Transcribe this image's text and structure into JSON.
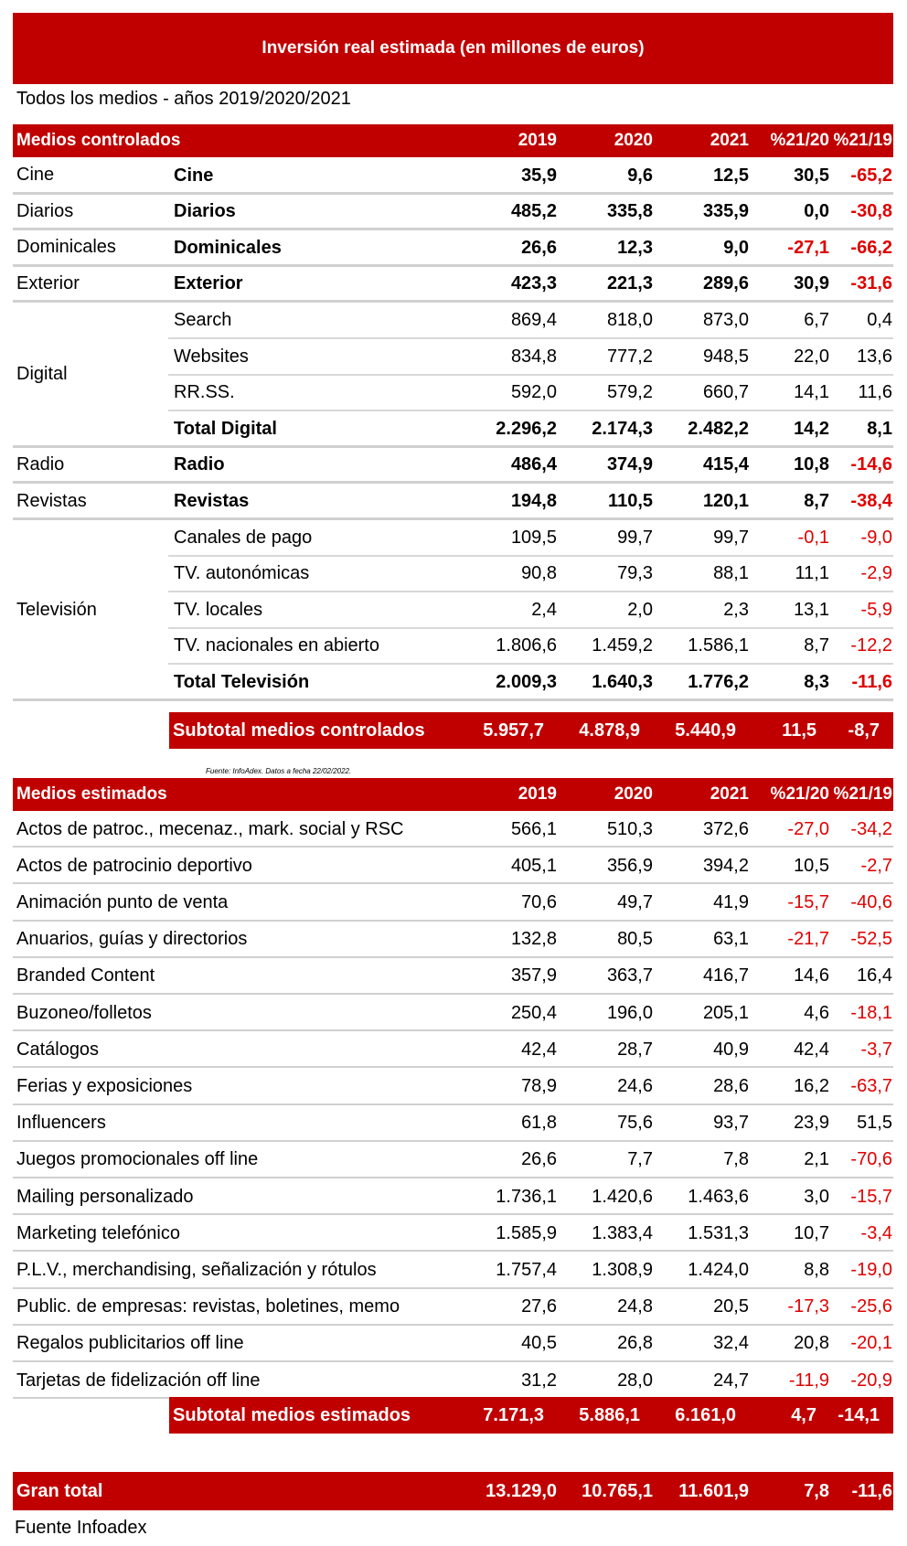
{
  "title": "Inversión real estimada (en millones de euros)",
  "subtitle": "Todos los medios - años 2019/2020/2021",
  "controlled": {
    "header": {
      "label": "Medios controlados",
      "y1": "2019",
      "y2": "2020",
      "y3": "2021",
      "p1": "%21/20",
      "p2": "%21/19"
    },
    "rows": [
      {
        "cat": "Cine",
        "sub": "Cine",
        "v": [
          "35,9",
          "9,6",
          "12,5",
          "30,5",
          "-65,2"
        ],
        "bold": true
      },
      {
        "cat": "Diarios",
        "sub": "Diarios",
        "v": [
          "485,2",
          "335,8",
          "335,9",
          "0,0",
          "-30,8"
        ],
        "bold": true
      },
      {
        "cat": "Dominicales",
        "sub": "Dominicales",
        "v": [
          "26,6",
          "12,3",
          "9,0",
          "-27,1",
          "-66,2"
        ],
        "bold": true
      },
      {
        "cat": "Exterior",
        "sub": "Exterior",
        "v": [
          "423,3",
          "221,3",
          "289,6",
          "30,9",
          "-31,6"
        ],
        "bold": true
      },
      {
        "cat": "",
        "sub": "Search",
        "v": [
          "869,4",
          "818,0",
          "873,0",
          "6,7",
          "0,4"
        ],
        "bold": false
      },
      {
        "cat": "Digital",
        "sub": "Websites",
        "v": [
          "834,8",
          "777,2",
          "948,5",
          "22,0",
          "13,6"
        ],
        "bold": false
      },
      {
        "cat": "",
        "sub": "RR.SS.",
        "v": [
          "592,0",
          "579,2",
          "660,7",
          "14,1",
          "11,6"
        ],
        "bold": false
      },
      {
        "cat": "",
        "sub": "Total Digital",
        "v": [
          "2.296,2",
          "2.174,3",
          "2.482,2",
          "14,2",
          "8,1"
        ],
        "bold": true
      },
      {
        "cat": "Radio",
        "sub": "Radio",
        "v": [
          "486,4",
          "374,9",
          "415,4",
          "10,8",
          "-14,6"
        ],
        "bold": true
      },
      {
        "cat": "Revistas",
        "sub": "Revistas",
        "v": [
          "194,8",
          "110,5",
          "120,1",
          "8,7",
          "-38,4"
        ],
        "bold": true
      },
      {
        "cat": "",
        "sub": "Canales de pago",
        "v": [
          "109,5",
          "99,7",
          "99,7",
          "-0,1",
          "-9,0"
        ],
        "bold": false
      },
      {
        "cat": "",
        "sub": "TV. autonómicas",
        "v": [
          "90,8",
          "79,3",
          "88,1",
          "11,1",
          "-2,9"
        ],
        "bold": false
      },
      {
        "cat": "Televisión",
        "sub": "TV. locales",
        "v": [
          "2,4",
          "2,0",
          "2,3",
          "13,1",
          "-5,9"
        ],
        "bold": false
      },
      {
        "cat": "",
        "sub": "TV. nacionales en abierto",
        "v": [
          "1.806,6",
          "1.459,2",
          "1.586,1",
          "8,7",
          "-12,2"
        ],
        "bold": false
      },
      {
        "cat": "",
        "sub": "Total Televisión",
        "v": [
          "2.009,3",
          "1.640,3",
          "1.776,2",
          "8,3",
          "-11,6"
        ],
        "bold": true
      }
    ],
    "subtotal": {
      "label": "Subtotal medios controlados",
      "v": [
        "5.957,7",
        "4.878,9",
        "5.440,9",
        "11,5",
        "-8,7"
      ]
    }
  },
  "source_note": "Fuente: InfoAdex. Datos a fecha 22/02/2022.",
  "estimated": {
    "header": {
      "label": "Medios estimados",
      "y1": "2019",
      "y2": "2020",
      "y3": "2021",
      "p1": "%21/20",
      "p2": "%21/19"
    },
    "rows": [
      {
        "label": "Actos de patroc., mecenaz., mark. social y RSC",
        "v": [
          "566,1",
          "510,3",
          "372,6",
          "-27,0",
          "-34,2"
        ]
      },
      {
        "label": "Actos de patrocinio deportivo",
        "v": [
          "405,1",
          "356,9",
          "394,2",
          "10,5",
          "-2,7"
        ]
      },
      {
        "label": "Animación punto de venta",
        "v": [
          "70,6",
          "49,7",
          "41,9",
          "-15,7",
          "-40,6"
        ]
      },
      {
        "label": "Anuarios, guías y directorios",
        "v": [
          "132,8",
          "80,5",
          "63,1",
          "-21,7",
          "-52,5"
        ]
      },
      {
        "label": "Branded Content",
        "v": [
          "357,9",
          "363,7",
          "416,7",
          "14,6",
          "16,4"
        ]
      },
      {
        "label": "Buzoneo/folletos",
        "v": [
          "250,4",
          "196,0",
          "205,1",
          "4,6",
          "-18,1"
        ]
      },
      {
        "label": "Catálogos",
        "v": [
          "42,4",
          "28,7",
          "40,9",
          "42,4",
          "-3,7"
        ]
      },
      {
        "label": "Ferias y exposiciones",
        "v": [
          "78,9",
          "24,6",
          "28,6",
          "16,2",
          "-63,7"
        ]
      },
      {
        "label": "Influencers",
        "v": [
          "61,8",
          "75,6",
          "93,7",
          "23,9",
          "51,5"
        ]
      },
      {
        "label": "Juegos promocionales off line",
        "v": [
          "26,6",
          "7,7",
          "7,8",
          "2,1",
          "-70,6"
        ]
      },
      {
        "label": "Mailing personalizado",
        "v": [
          "1.736,1",
          "1.420,6",
          "1.463,6",
          "3,0",
          "-15,7"
        ]
      },
      {
        "label": "Marketing telefónico",
        "v": [
          "1.585,9",
          "1.383,4",
          "1.531,3",
          "10,7",
          "-3,4"
        ]
      },
      {
        "label": "P.L.V., merchandising, señalización y rótulos",
        "v": [
          "1.757,4",
          "1.308,9",
          "1.424,0",
          "8,8",
          "-19,0"
        ]
      },
      {
        "label": "Public. de empresas: revistas, boletines, memo",
        "v": [
          "27,6",
          "24,8",
          "20,5",
          "-17,3",
          "-25,6"
        ]
      },
      {
        "label": "Regalos publicitarios off line",
        "v": [
          "40,5",
          "26,8",
          "32,4",
          "20,8",
          "-20,1"
        ]
      },
      {
        "label": "Tarjetas de fidelización off line",
        "v": [
          "31,2",
          "28,0",
          "24,7",
          "-11,9",
          "-20,9"
        ]
      }
    ],
    "subtotal": {
      "label": "Subtotal medios estimados",
      "v": [
        "7.171,3",
        "5.886,1",
        "6.161,0",
        "4,7",
        "-14,1"
      ]
    }
  },
  "grand_total": {
    "label": "Gran total",
    "v": [
      "13.129,0",
      "10.765,1",
      "11.601,9",
      "7,8",
      "-11,6"
    ]
  },
  "footer": "Fuente Infoadex",
  "colors": {
    "brand_red": "#c00000",
    "negative_red": "#e00000"
  }
}
